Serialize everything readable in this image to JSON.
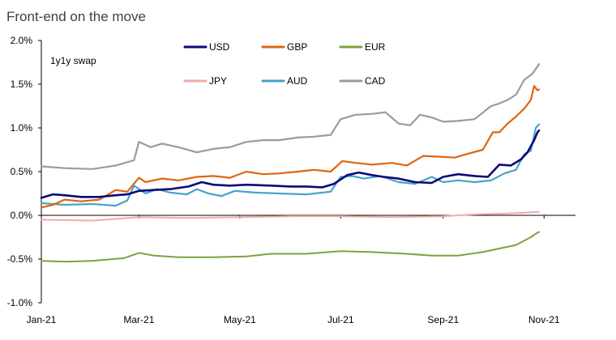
{
  "chart_data": {
    "type": "line",
    "title": "Front-end on the move",
    "subtitle": "1y1y swap",
    "xlabel": "",
    "ylabel": "",
    "x_start": "2021-01-01",
    "x_end": "2021-11-20",
    "ylim": [
      -1.0,
      2.0
    ],
    "y_ticks": [
      {
        "v": 2.0,
        "label": "2.0%"
      },
      {
        "v": 1.5,
        "label": "1.5%"
      },
      {
        "v": 1.0,
        "label": "1.0%"
      },
      {
        "v": 0.5,
        "label": "0.5%"
      },
      {
        "v": 0.0,
        "label": "0.0%"
      },
      {
        "v": -0.5,
        "label": "-0.5%"
      },
      {
        "v": -1.0,
        "label": "-1.0%"
      }
    ],
    "x_ticks": [
      {
        "date": "2021-01-01",
        "label": "Jan-21"
      },
      {
        "date": "2021-03-01",
        "label": "Mar-21"
      },
      {
        "date": "2021-05-01",
        "label": "May-21"
      },
      {
        "date": "2021-07-01",
        "label": "Jul-21"
      },
      {
        "date": "2021-09-01",
        "label": "Sep-21"
      },
      {
        "date": "2021-11-01",
        "label": "Nov-21"
      }
    ],
    "grid": false,
    "legend": "top, two rows",
    "series": [
      {
        "name": "USD",
        "color": "#0a0a78",
        "width": 2.6,
        "points": [
          [
            "2021-01-01",
            0.2
          ],
          [
            "2021-01-08",
            0.24
          ],
          [
            "2021-01-15",
            0.23
          ],
          [
            "2021-01-25",
            0.21
          ],
          [
            "2021-02-05",
            0.21
          ],
          [
            "2021-02-15",
            0.23
          ],
          [
            "2021-02-22",
            0.24
          ],
          [
            "2021-03-01",
            0.28
          ],
          [
            "2021-03-10",
            0.29
          ],
          [
            "2021-03-20",
            0.3
          ],
          [
            "2021-03-31",
            0.33
          ],
          [
            "2021-04-08",
            0.38
          ],
          [
            "2021-04-15",
            0.35
          ],
          [
            "2021-04-25",
            0.34
          ],
          [
            "2021-05-05",
            0.35
          ],
          [
            "2021-05-20",
            0.34
          ],
          [
            "2021-06-01",
            0.33
          ],
          [
            "2021-06-10",
            0.33
          ],
          [
            "2021-06-20",
            0.32
          ],
          [
            "2021-06-27",
            0.36
          ],
          [
            "2021-07-05",
            0.46
          ],
          [
            "2021-07-12",
            0.49
          ],
          [
            "2021-07-20",
            0.46
          ],
          [
            "2021-07-27",
            0.44
          ],
          [
            "2021-08-05",
            0.42
          ],
          [
            "2021-08-15",
            0.38
          ],
          [
            "2021-08-25",
            0.37
          ],
          [
            "2021-09-01",
            0.44
          ],
          [
            "2021-09-10",
            0.47
          ],
          [
            "2021-09-20",
            0.45
          ],
          [
            "2021-09-28",
            0.44
          ],
          [
            "2021-10-05",
            0.58
          ],
          [
            "2021-10-12",
            0.57
          ],
          [
            "2021-10-18",
            0.64
          ],
          [
            "2021-10-22",
            0.72
          ],
          [
            "2021-10-26",
            0.86
          ],
          [
            "2021-10-28",
            0.95
          ],
          [
            "2021-10-29",
            0.97
          ]
        ]
      },
      {
        "name": "GBP",
        "color": "#e0650e",
        "width": 2.2,
        "points": [
          [
            "2021-01-01",
            0.09
          ],
          [
            "2021-01-08",
            0.12
          ],
          [
            "2021-01-15",
            0.18
          ],
          [
            "2021-01-25",
            0.16
          ],
          [
            "2021-02-05",
            0.18
          ],
          [
            "2021-02-15",
            0.29
          ],
          [
            "2021-02-22",
            0.27
          ],
          [
            "2021-03-01",
            0.43
          ],
          [
            "2021-03-05",
            0.38
          ],
          [
            "2021-03-15",
            0.42
          ],
          [
            "2021-03-25",
            0.4
          ],
          [
            "2021-04-05",
            0.44
          ],
          [
            "2021-04-15",
            0.45
          ],
          [
            "2021-04-25",
            0.43
          ],
          [
            "2021-05-05",
            0.5
          ],
          [
            "2021-05-15",
            0.47
          ],
          [
            "2021-05-25",
            0.48
          ],
          [
            "2021-06-05",
            0.5
          ],
          [
            "2021-06-15",
            0.52
          ],
          [
            "2021-06-25",
            0.5
          ],
          [
            "2021-07-02",
            0.62
          ],
          [
            "2021-07-10",
            0.6
          ],
          [
            "2021-07-20",
            0.58
          ],
          [
            "2021-08-01",
            0.6
          ],
          [
            "2021-08-10",
            0.57
          ],
          [
            "2021-08-20",
            0.68
          ],
          [
            "2021-08-30",
            0.67
          ],
          [
            "2021-09-08",
            0.66
          ],
          [
            "2021-09-15",
            0.7
          ],
          [
            "2021-09-25",
            0.75
          ],
          [
            "2021-10-01",
            0.95
          ],
          [
            "2021-10-05",
            0.95
          ],
          [
            "2021-10-10",
            1.05
          ],
          [
            "2021-10-15",
            1.13
          ],
          [
            "2021-10-20",
            1.22
          ],
          [
            "2021-10-24",
            1.32
          ],
          [
            "2021-10-26",
            1.48
          ],
          [
            "2021-10-28",
            1.43
          ],
          [
            "2021-10-29",
            1.44
          ]
        ]
      },
      {
        "name": "EUR",
        "color": "#7aa33f",
        "width": 2.0,
        "points": [
          [
            "2021-01-01",
            -0.52
          ],
          [
            "2021-01-15",
            -0.53
          ],
          [
            "2021-02-01",
            -0.52
          ],
          [
            "2021-02-20",
            -0.49
          ],
          [
            "2021-03-01",
            -0.43
          ],
          [
            "2021-03-10",
            -0.46
          ],
          [
            "2021-03-25",
            -0.48
          ],
          [
            "2021-04-15",
            -0.48
          ],
          [
            "2021-05-05",
            -0.47
          ],
          [
            "2021-05-20",
            -0.44
          ],
          [
            "2021-06-10",
            -0.44
          ],
          [
            "2021-07-01",
            -0.41
          ],
          [
            "2021-07-20",
            -0.42
          ],
          [
            "2021-08-10",
            -0.44
          ],
          [
            "2021-08-25",
            -0.46
          ],
          [
            "2021-09-10",
            -0.46
          ],
          [
            "2021-09-25",
            -0.42
          ],
          [
            "2021-10-05",
            -0.38
          ],
          [
            "2021-10-15",
            -0.34
          ],
          [
            "2021-10-20",
            -0.29
          ],
          [
            "2021-10-24",
            -0.25
          ],
          [
            "2021-10-27",
            -0.21
          ],
          [
            "2021-10-29",
            -0.19
          ]
        ]
      },
      {
        "name": "JPY",
        "color": "#f2a8a8",
        "width": 2.0,
        "points": [
          [
            "2021-01-01",
            -0.05
          ],
          [
            "2021-02-01",
            -0.06
          ],
          [
            "2021-03-01",
            -0.02
          ],
          [
            "2021-04-01",
            -0.03
          ],
          [
            "2021-05-01",
            -0.02
          ],
          [
            "2021-06-01",
            -0.01
          ],
          [
            "2021-07-01",
            -0.01
          ],
          [
            "2021-08-01",
            -0.02
          ],
          [
            "2021-09-01",
            -0.01
          ],
          [
            "2021-09-20",
            0.01
          ],
          [
            "2021-10-10",
            0.02
          ],
          [
            "2021-10-29",
            0.04
          ]
        ]
      },
      {
        "name": "AUD",
        "color": "#4aa1c9",
        "width": 2.2,
        "points": [
          [
            "2021-01-01",
            0.14
          ],
          [
            "2021-01-15",
            0.12
          ],
          [
            "2021-02-01",
            0.13
          ],
          [
            "2021-02-15",
            0.11
          ],
          [
            "2021-02-22",
            0.17
          ],
          [
            "2021-02-26",
            0.34
          ],
          [
            "2021-03-05",
            0.25
          ],
          [
            "2021-03-12",
            0.3
          ],
          [
            "2021-03-20",
            0.26
          ],
          [
            "2021-03-30",
            0.24
          ],
          [
            "2021-04-05",
            0.3
          ],
          [
            "2021-04-12",
            0.25
          ],
          [
            "2021-04-20",
            0.22
          ],
          [
            "2021-04-28",
            0.28
          ],
          [
            "2021-05-10",
            0.26
          ],
          [
            "2021-05-25",
            0.25
          ],
          [
            "2021-06-10",
            0.24
          ],
          [
            "2021-06-25",
            0.27
          ],
          [
            "2021-07-01",
            0.44
          ],
          [
            "2021-07-08",
            0.45
          ],
          [
            "2021-07-15",
            0.42
          ],
          [
            "2021-07-25",
            0.45
          ],
          [
            "2021-08-05",
            0.38
          ],
          [
            "2021-08-15",
            0.36
          ],
          [
            "2021-08-25",
            0.44
          ],
          [
            "2021-09-01",
            0.38
          ],
          [
            "2021-09-10",
            0.4
          ],
          [
            "2021-09-20",
            0.38
          ],
          [
            "2021-09-30",
            0.4
          ],
          [
            "2021-10-08",
            0.48
          ],
          [
            "2021-10-15",
            0.52
          ],
          [
            "2021-10-20",
            0.7
          ],
          [
            "2021-10-24",
            0.74
          ],
          [
            "2021-10-27",
            1.0
          ],
          [
            "2021-10-29",
            1.04
          ]
        ]
      },
      {
        "name": "CAD",
        "color": "#9a9aa6",
        "width": 2.2,
        "points": [
          [
            "2021-01-01",
            0.56
          ],
          [
            "2021-01-15",
            0.54
          ],
          [
            "2021-02-01",
            0.53
          ],
          [
            "2021-02-15",
            0.57
          ],
          [
            "2021-02-26",
            0.63
          ],
          [
            "2021-03-01",
            0.84
          ],
          [
            "2021-03-08",
            0.78
          ],
          [
            "2021-03-15",
            0.82
          ],
          [
            "2021-03-25",
            0.78
          ],
          [
            "2021-04-05",
            0.72
          ],
          [
            "2021-04-15",
            0.76
          ],
          [
            "2021-04-25",
            0.78
          ],
          [
            "2021-05-05",
            0.84
          ],
          [
            "2021-05-15",
            0.86
          ],
          [
            "2021-05-25",
            0.86
          ],
          [
            "2021-06-05",
            0.89
          ],
          [
            "2021-06-15",
            0.9
          ],
          [
            "2021-06-25",
            0.92
          ],
          [
            "2021-07-01",
            1.1
          ],
          [
            "2021-07-10",
            1.15
          ],
          [
            "2021-07-20",
            1.16
          ],
          [
            "2021-07-28",
            1.18
          ],
          [
            "2021-08-05",
            1.05
          ],
          [
            "2021-08-12",
            1.03
          ],
          [
            "2021-08-18",
            1.15
          ],
          [
            "2021-08-25",
            1.12
          ],
          [
            "2021-09-01",
            1.07
          ],
          [
            "2021-09-10",
            1.08
          ],
          [
            "2021-09-20",
            1.1
          ],
          [
            "2021-09-30",
            1.25
          ],
          [
            "2021-10-05",
            1.28
          ],
          [
            "2021-10-10",
            1.32
          ],
          [
            "2021-10-15",
            1.38
          ],
          [
            "2021-10-20",
            1.55
          ],
          [
            "2021-10-25",
            1.62
          ],
          [
            "2021-10-29",
            1.73
          ]
        ]
      }
    ]
  }
}
